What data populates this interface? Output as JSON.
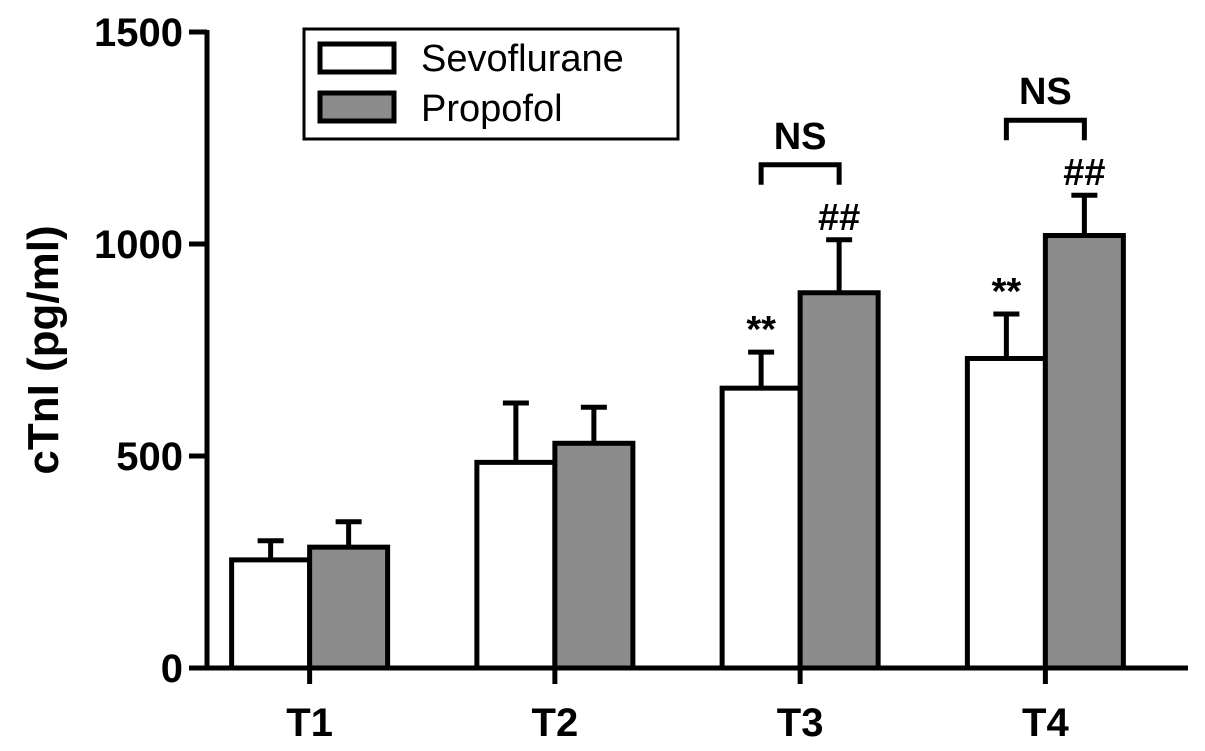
{
  "chart_data": {
    "type": "bar",
    "title": "",
    "xlabel": "",
    "ylabel": "cTnI (pg/ml)",
    "ylim": [
      0,
      1500
    ],
    "yticks": [
      0,
      500,
      1000,
      1500
    ],
    "categories": [
      "T1",
      "T2",
      "T3",
      "T4"
    ],
    "series": [
      {
        "name": "Sevoflurane",
        "color": "#ffffff",
        "values": [
          255,
          485,
          660,
          730
        ],
        "errors": [
          45,
          140,
          85,
          105
        ],
        "annotations": [
          "",
          "",
          "**",
          "**"
        ]
      },
      {
        "name": "Propofol",
        "color": "#8c8c8c",
        "values": [
          285,
          530,
          885,
          1020
        ],
        "errors": [
          60,
          85,
          125,
          95
        ],
        "annotations": [
          "",
          "",
          "##",
          "##"
        ]
      }
    ],
    "brackets": [
      {
        "category": "T3",
        "label": "NS"
      },
      {
        "category": "T4",
        "label": "NS"
      }
    ],
    "legend": "top-left",
    "grid": false
  }
}
